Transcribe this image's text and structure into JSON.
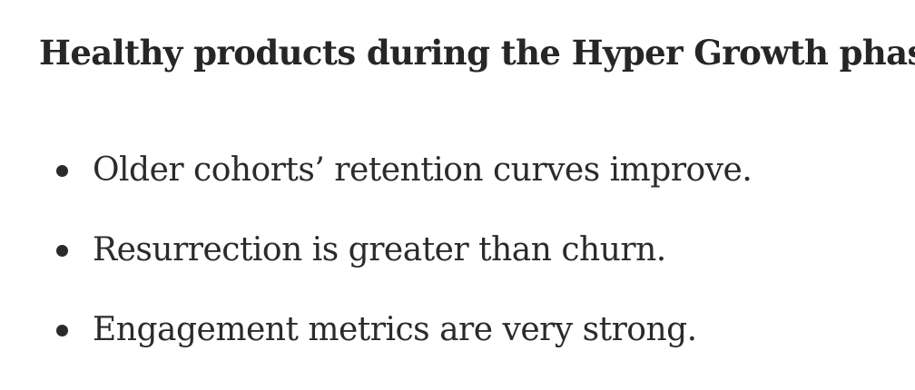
{
  "article": {
    "heading": "Healthy products during the Hyper Growth phase",
    "bullets": [
      {
        "text": "Older cohorts’ retention curves improve."
      },
      {
        "text": "Resurrection is greater than churn."
      },
      {
        "text": "Engagement metrics are very strong."
      }
    ]
  },
  "colors": {
    "text": "#2b2b2b",
    "background": "#ffffff"
  }
}
